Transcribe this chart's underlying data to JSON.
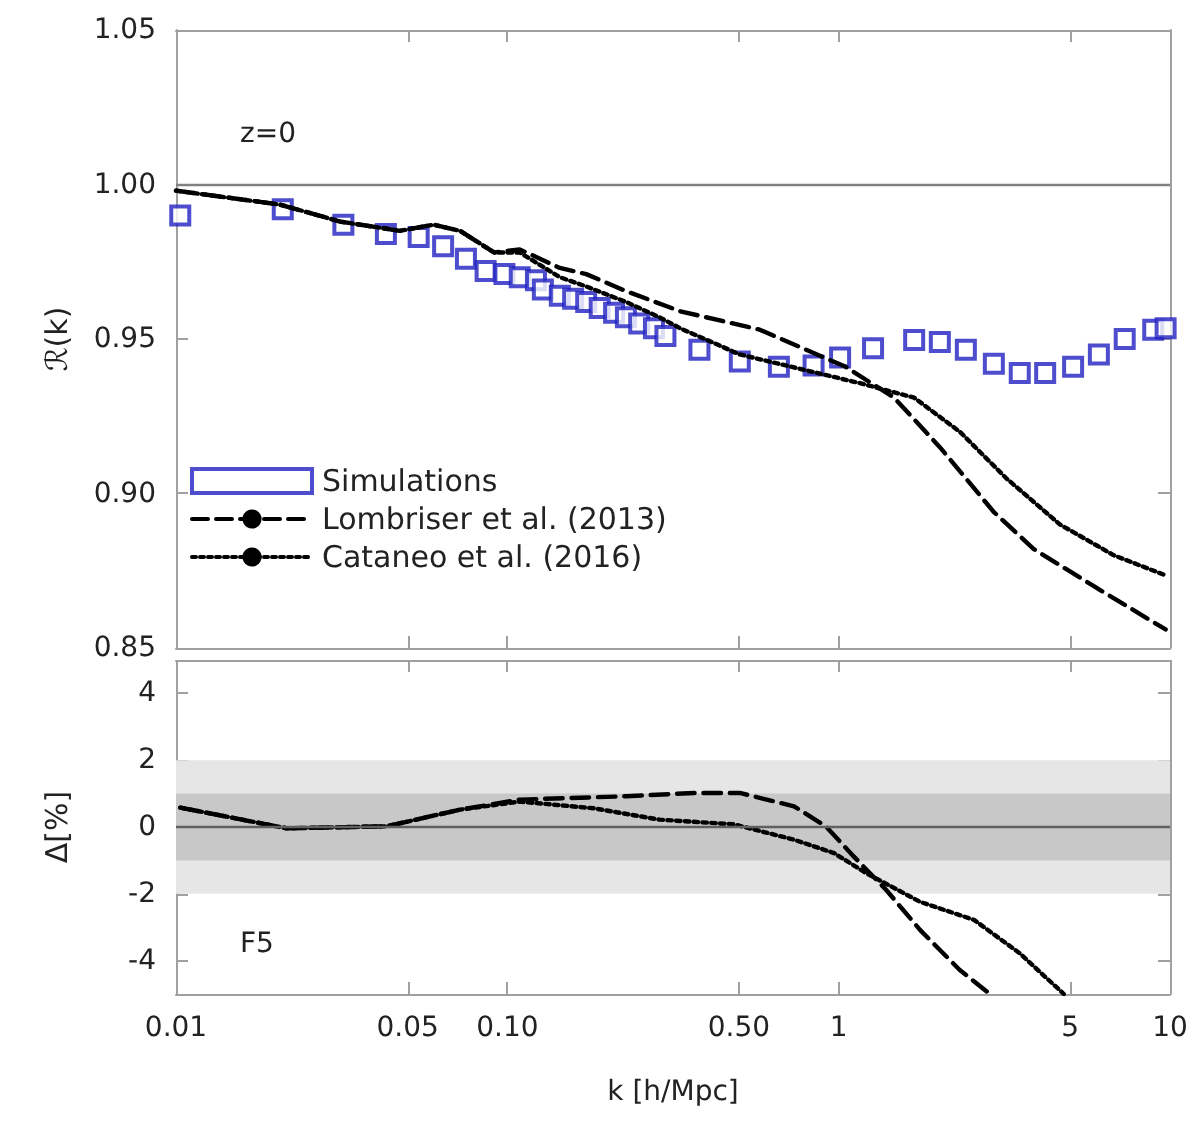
{
  "chart_data": [
    {
      "type": "line",
      "ylabel": "ℛ(k)",
      "annotations": [
        "z=0"
      ],
      "xlim": [
        0.01,
        10
      ],
      "xticks": [
        {
          "value": 0.01,
          "label": null
        },
        {
          "value": 0.05,
          "label": null
        },
        {
          "value": 0.1,
          "label": null
        },
        {
          "value": 0.5,
          "label": null
        },
        {
          "value": 1,
          "label": null
        },
        {
          "value": 5,
          "label": null
        },
        {
          "value": 10,
          "label": null
        }
      ],
      "ylim": [
        0.85,
        1.05
      ],
      "yticks": [
        {
          "value": 0.85,
          "label": "0.85"
        },
        {
          "value": 0.9,
          "label": "0.90"
        },
        {
          "value": 0.95,
          "label": "0.95"
        },
        {
          "value": 1.0,
          "label": "1.00"
        },
        {
          "value": 1.05,
          "label": "1.05"
        }
      ],
      "log": "x",
      "tick_labels": "y",
      "legend": "bottom left",
      "ref_lines": [
        {
          "axis": "y",
          "value": 1.0,
          "color": "#808080"
        }
      ],
      "series": [
        {
          "name": "Simulations",
          "type": "scatter",
          "marker": "square",
          "color": "#2020c0",
          "x": [
            0.0103,
            0.021,
            0.032,
            0.043,
            0.054,
            0.064,
            0.075,
            0.086,
            0.098,
            0.109,
            0.122,
            0.128,
            0.144,
            0.158,
            0.173,
            0.19,
            0.21,
            0.228,
            0.25,
            0.277,
            0.3,
            0.38,
            0.503,
            0.66,
            0.84,
            1.01,
            1.27,
            1.69,
            2.02,
            2.42,
            2.94,
            3.52,
            4.2,
            5.1,
            6.1,
            7.3,
            8.9,
            9.7
          ],
          "values": [
            0.99,
            0.992,
            0.987,
            0.984,
            0.983,
            0.98,
            0.976,
            0.972,
            0.971,
            0.97,
            0.969,
            0.966,
            0.964,
            0.963,
            0.962,
            0.96,
            0.9585,
            0.957,
            0.955,
            0.9535,
            0.951,
            0.9465,
            0.9427,
            0.941,
            0.9414,
            0.944,
            0.947,
            0.9497,
            0.949,
            0.9465,
            0.942,
            0.939,
            0.939,
            0.941,
            0.945,
            0.95,
            0.953,
            0.9535
          ]
        },
        {
          "name": "Lombriser et al. (2013)",
          "type": "line",
          "line_style": "dashed",
          "color": "#000000",
          "x": [
            0.01,
            0.0206,
            0.0313,
            0.0474,
            0.06,
            0.072,
            0.0912,
            0.109,
            0.144,
            0.173,
            0.228,
            0.332,
            0.578,
            1.05,
            1.47,
            2.02,
            2.94,
            3.88,
            5.89,
            9.7
          ],
          "values": [
            0.998,
            0.9935,
            0.988,
            0.985,
            0.987,
            0.985,
            0.978,
            0.979,
            0.973,
            0.971,
            0.9655,
            0.959,
            0.953,
            0.941,
            0.931,
            0.915,
            0.894,
            0.882,
            0.87,
            0.856
          ]
        },
        {
          "name": "Cataneo et al. (2016)",
          "type": "line",
          "line_style": "dotted",
          "color": "#000000",
          "x": [
            0.01,
            0.0206,
            0.0313,
            0.0474,
            0.06,
            0.072,
            0.0912,
            0.109,
            0.144,
            0.173,
            0.228,
            0.288,
            0.332,
            0.503,
            1.16,
            1.69,
            2.32,
            3.2,
            4.65,
            6.77,
            9.7
          ],
          "values": [
            0.998,
            0.9935,
            0.988,
            0.985,
            0.987,
            0.985,
            0.978,
            0.978,
            0.97,
            0.967,
            0.962,
            0.957,
            0.9535,
            0.945,
            0.9357,
            0.931,
            0.92,
            0.905,
            0.89,
            0.88,
            0.8735
          ]
        }
      ]
    },
    {
      "type": "line",
      "xlabel": "k [h/Mpc]",
      "ylabel": "Δ[%]",
      "annotations": [
        "F5"
      ],
      "xlim": [
        0.01,
        10
      ],
      "xticks": [
        0.01,
        0.05,
        {
          "value": 0.1,
          "label": "0.10"
        },
        {
          "value": 0.5,
          "label": "0.50"
        },
        1,
        5,
        10
      ],
      "ylim": [
        -5,
        5
      ],
      "yticks": [
        -4,
        -2,
        0,
        2,
        4
      ],
      "log": "x",
      "ref_lines": [
        {
          "axis": "y",
          "value": 0,
          "color": "#606060"
        }
      ],
      "bands": [
        {
          "axis": "y",
          "from": -2,
          "to": 2,
          "color": "#e6e6e6"
        },
        {
          "axis": "y",
          "from": -1,
          "to": 1,
          "color": "#c8c8c8"
        }
      ],
      "series": [
        {
          "line_style": "dashed",
          "color": "#000000",
          "x": [
            0.0103,
            0.0216,
            0.0432,
            0.072,
            0.109,
            0.228,
            0.366,
            0.503,
            0.733,
            0.915,
            1.11,
            1.39,
            1.76,
            2.32,
            2.86
          ],
          "values": [
            0.58,
            -0.04,
            0.02,
            0.52,
            0.82,
            0.92,
            1.02,
            1.02,
            0.62,
            0.02,
            -0.88,
            -1.88,
            -3.08,
            -4.28,
            -5
          ]
        },
        {
          "line_style": "dotted",
          "color": "#000000",
          "x": [
            0.0103,
            0.0216,
            0.0432,
            0.072,
            0.109,
            0.1825,
            0.288,
            0.483,
            0.733,
            0.968,
            1.21,
            1.76,
            2.56,
            3.52,
            4.78
          ],
          "values": [
            0.58,
            -0.04,
            0.02,
            0.52,
            0.76,
            0.56,
            0.22,
            0.08,
            -0.38,
            -0.78,
            -1.38,
            -2.24,
            -2.78,
            -3.78,
            -5
          ]
        }
      ]
    }
  ]
}
